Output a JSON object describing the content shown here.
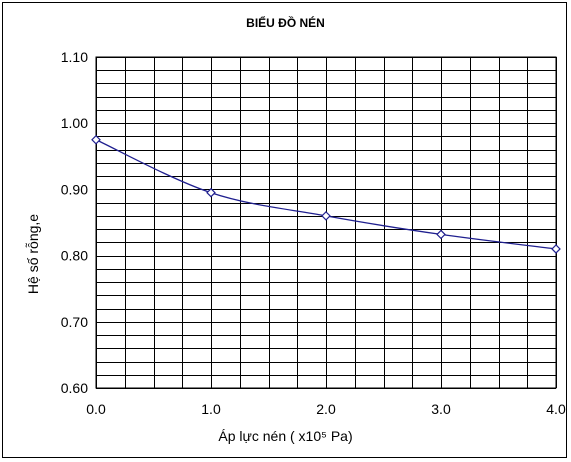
{
  "chart_data": {
    "type": "line",
    "title": "BIỂU ĐỒ NÉN",
    "xlabel": "Áp lực nén ( x10⁵ Pa)",
    "ylabel": "Hệ số rỗng,e",
    "x": [
      0.0,
      1.0,
      2.0,
      3.0,
      4.0
    ],
    "series": [
      {
        "values": [
          0.975,
          0.895,
          0.86,
          0.832,
          0.81
        ]
      }
    ],
    "xlim": [
      0.0,
      4.0
    ],
    "ylim": [
      0.6,
      1.1
    ],
    "x_ticks": [
      "0.0",
      "1.0",
      "2.0",
      "3.0",
      "4.0"
    ],
    "y_ticks": [
      "0.60",
      "0.70",
      "0.80",
      "0.90",
      "1.00",
      "1.10"
    ],
    "x_minor_step": 0.25,
    "y_minor_step": 0.02,
    "grid": true,
    "marker": "diamond",
    "line_color": "#1f1f8f",
    "grid_color": "#000000"
  }
}
